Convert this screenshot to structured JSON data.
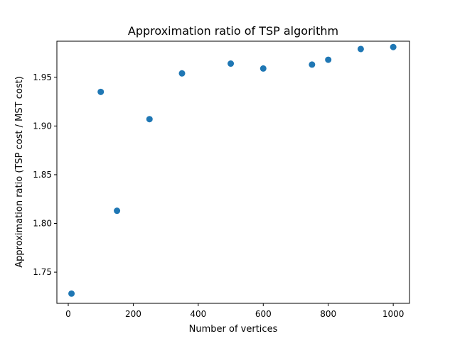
{
  "chart_data": {
    "type": "scatter",
    "title": "Approximation ratio of TSP algorithm",
    "xlabel": "Number of vertices",
    "ylabel": "Approximation ratio (TSP cost / MST cost)",
    "xlim": [
      -35,
      1050
    ],
    "ylim": [
      1.718,
      1.987
    ],
    "xticks": [
      0,
      200,
      400,
      600,
      800,
      1000
    ],
    "yticks": [
      1.75,
      1.8,
      1.85,
      1.9,
      1.95
    ],
    "ytick_labels": [
      "1.75",
      "1.80",
      "1.85",
      "1.90",
      "1.95"
    ],
    "grid": false,
    "marker_color": "#1f77b4",
    "series": [
      {
        "x": [
          10,
          100,
          150,
          250,
          350,
          500,
          600,
          750,
          800,
          900,
          1000
        ],
        "y": [
          1.728,
          1.935,
          1.813,
          1.907,
          1.954,
          1.964,
          1.959,
          1.963,
          1.968,
          1.979,
          1.981
        ]
      }
    ]
  }
}
